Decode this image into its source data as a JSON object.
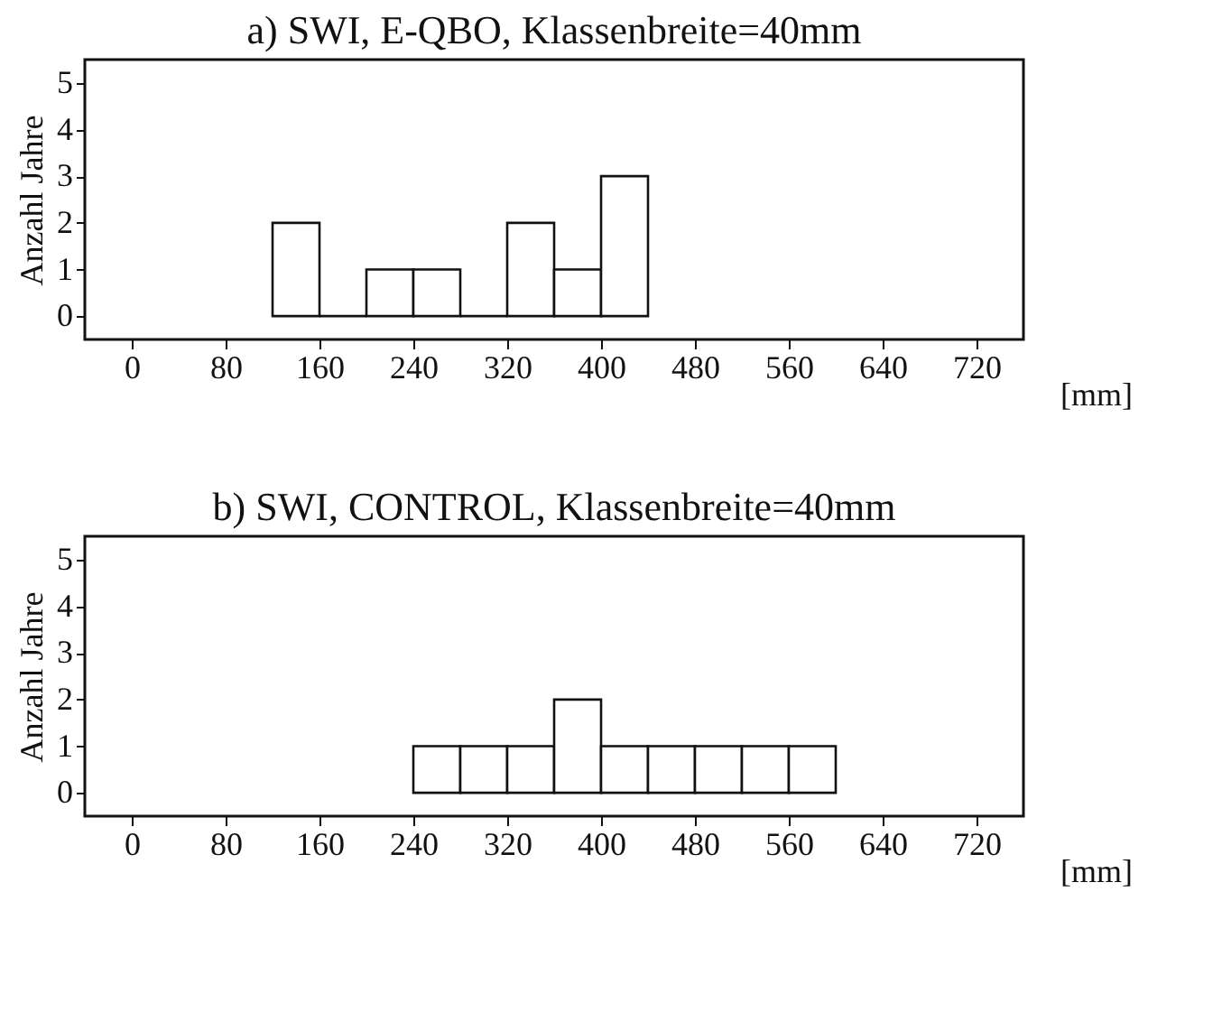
{
  "chart_data": [
    {
      "type": "histogram",
      "title": "a) SWI, E-QBO, Klassenbreite=40mm",
      "xlabel": "[mm]",
      "ylabel": "Anzahl Jahre",
      "bins": [
        120,
        160,
        200,
        240,
        280,
        320,
        360,
        400,
        440
      ],
      "values": [
        2,
        0,
        1,
        1,
        0,
        2,
        1,
        3
      ],
      "xlim": [
        -40,
        760
      ],
      "xticks": [
        0,
        80,
        160,
        240,
        320,
        400,
        480,
        560,
        640,
        720
      ],
      "ylim": [
        -0.5,
        5.5
      ],
      "yticks": [
        0,
        1,
        2,
        3,
        4,
        5
      ]
    },
    {
      "type": "histogram",
      "title": "b) SWI, CONTROL, Klassenbreite=40mm",
      "xlabel": "[mm]",
      "ylabel": "Anzahl Jahre",
      "bins": [
        240,
        280,
        320,
        360,
        400,
        440,
        480,
        520,
        560,
        600
      ],
      "values": [
        1,
        1,
        1,
        2,
        1,
        1,
        1,
        1,
        1
      ],
      "xlim": [
        -40,
        760
      ],
      "xticks": [
        0,
        80,
        160,
        240,
        320,
        400,
        480,
        560,
        640,
        720
      ],
      "ylim": [
        -0.5,
        5.5
      ],
      "yticks": [
        0,
        1,
        2,
        3,
        4,
        5
      ]
    }
  ]
}
